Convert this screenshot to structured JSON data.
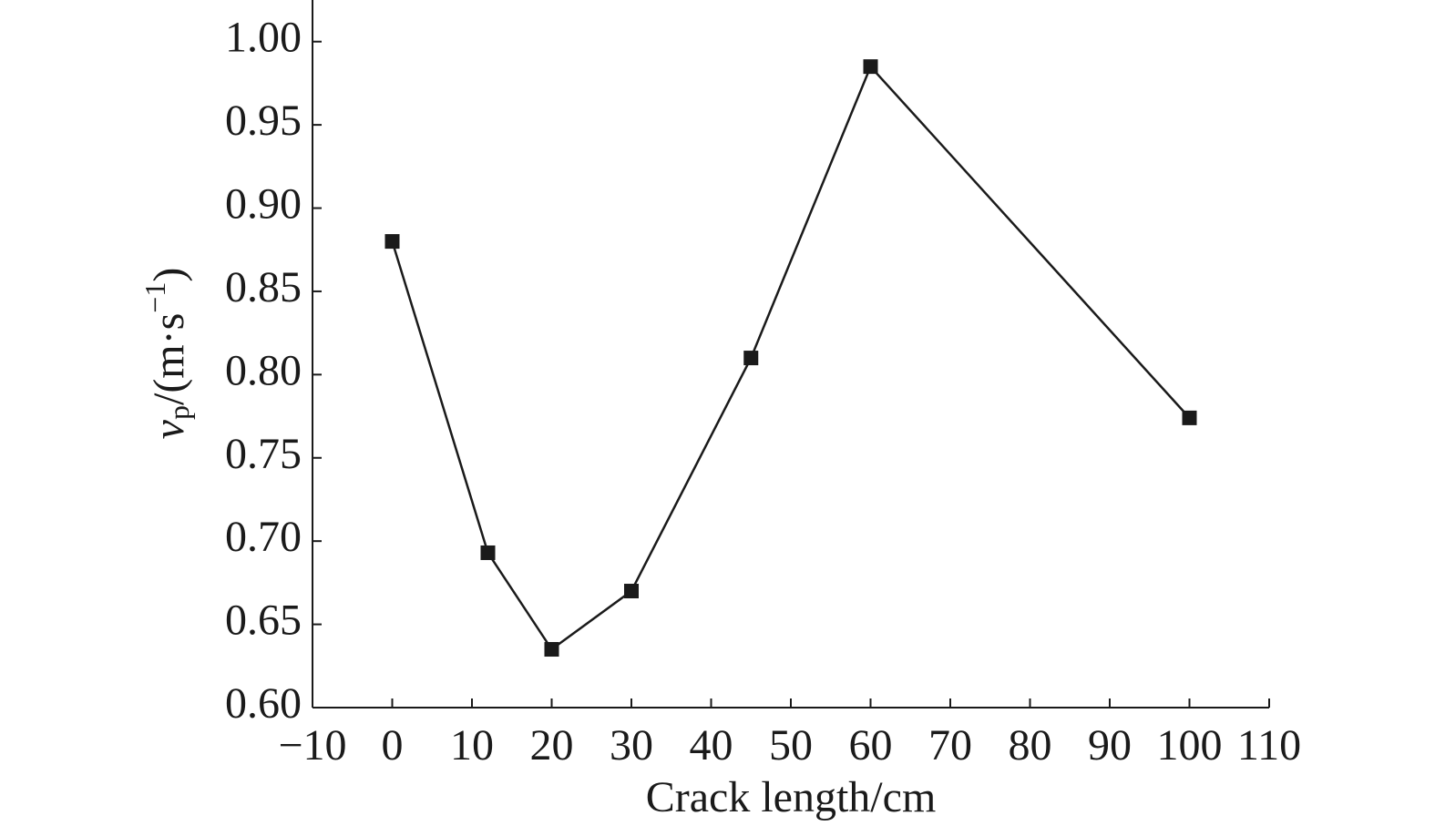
{
  "chart_data": {
    "type": "line",
    "xlabel": "Crack length/cm",
    "ylabel_parts": [
      "v",
      "p",
      "/(m·s",
      "−1",
      ")"
    ],
    "x": [
      0,
      12,
      20,
      30,
      45,
      60,
      100
    ],
    "series": [
      {
        "color": "#1a1a1a",
        "marker": "square",
        "values": [
          0.88,
          0.693,
          0.635,
          0.67,
          0.81,
          0.985,
          0.774
        ]
      }
    ],
    "xlim": [
      -10,
      110
    ],
    "xticks": [
      {
        "value": -10,
        "label": "−10"
      },
      0,
      10,
      20,
      30,
      40,
      50,
      60,
      70,
      80,
      90,
      100,
      110
    ],
    "ylim": [
      0.6,
      1.025
    ],
    "yticks": [
      {
        "value": 0.6,
        "label": "0.60"
      },
      {
        "value": 0.65,
        "label": "0.65"
      },
      {
        "value": 0.7,
        "label": "0.70"
      },
      {
        "value": 0.75,
        "label": "0.75"
      },
      {
        "value": 0.8,
        "label": "0.80"
      },
      {
        "value": 0.85,
        "label": "0.85"
      },
      {
        "value": 0.9,
        "label": "0.90"
      },
      {
        "value": 0.95,
        "label": "0.95"
      },
      {
        "value": 1.0,
        "label": "1.00"
      }
    ],
    "grid": false
  }
}
